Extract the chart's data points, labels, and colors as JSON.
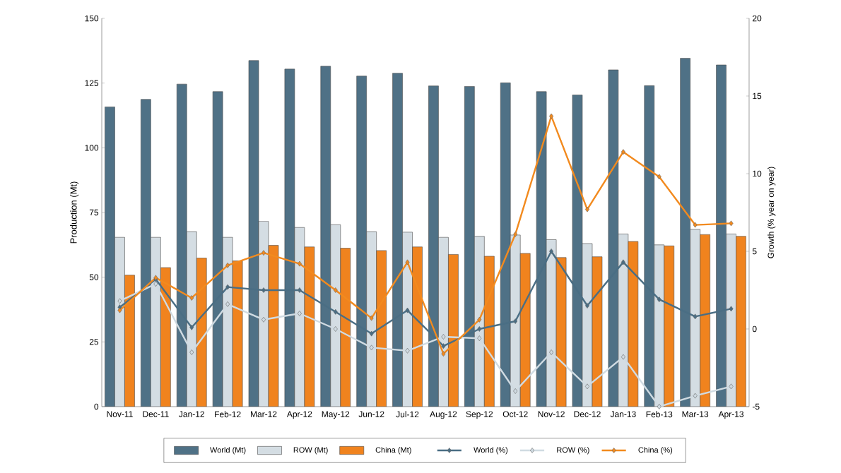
{
  "chart_data": {
    "type": "bar",
    "ylabel": "Production (Mt)",
    "y2label": "Growth (% year on year)",
    "categories": [
      "Nov-11",
      "Dec-11",
      "Jan-12",
      "Feb-12",
      "Mar-12",
      "Apr-12",
      "May-12",
      "Jun-12",
      "Jul-12",
      "Aug-12",
      "Sep-12",
      "Oct-12",
      "Nov-12",
      "Dec-12",
      "Jan-13",
      "Feb-13",
      "Mar-13",
      "Apr-13"
    ],
    "ylim": [
      0,
      150
    ],
    "yticks": [
      0,
      25,
      50,
      75,
      100,
      125,
      150
    ],
    "y2lim": [
      -5,
      20
    ],
    "y2ticks": [
      -5,
      0,
      5,
      10,
      15,
      20
    ],
    "legend": "bottom",
    "grid": false,
    "series": [
      {
        "name": "World (Mt)",
        "color": "#4f7186",
        "values": [
          115.8,
          118.7,
          124.6,
          121.7,
          133.7,
          130.4,
          131.5,
          127.7,
          128.8,
          123.9,
          123.7,
          125.1,
          121.7,
          120.4,
          130.1,
          124.0,
          134.6,
          132.0
        ]
      },
      {
        "name": "ROW (Mt)",
        "color": "#d4dde3",
        "values": [
          65.4,
          65.4,
          67.6,
          65.4,
          71.6,
          69.2,
          70.3,
          67.6,
          67.4,
          65.4,
          65.8,
          66.3,
          64.5,
          63.0,
          66.7,
          62.5,
          68.5,
          66.7
        ]
      },
      {
        "name": "China (Mt)",
        "color": "#f0831e",
        "values": [
          50.8,
          53.7,
          57.4,
          56.3,
          62.3,
          61.7,
          61.2,
          60.3,
          61.7,
          58.8,
          58.1,
          59.2,
          57.6,
          57.9,
          63.8,
          62.1,
          66.5,
          65.8
        ]
      },
      {
        "name": "World (%)",
        "type": "line",
        "axis": "y2",
        "marker": "diamond",
        "color": "#4a6e84",
        "values": [
          1.4,
          3.2,
          0.1,
          2.7,
          2.5,
          2.5,
          1.1,
          -0.3,
          1.2,
          -1.1,
          0.0,
          0.5,
          5.0,
          1.5,
          4.3,
          1.9,
          0.8,
          1.3
        ]
      },
      {
        "name": "ROW (%)",
        "type": "line",
        "axis": "y2",
        "marker": "diamond",
        "color": "#d0dbe2",
        "values": [
          1.8,
          2.9,
          -1.5,
          1.6,
          0.6,
          1.0,
          0.0,
          -1.2,
          -1.4,
          -0.5,
          -0.6,
          -4.0,
          -1.5,
          -3.7,
          -1.8,
          -5.0,
          -4.3,
          -3.7
        ]
      },
      {
        "name": "China (%)",
        "type": "line",
        "axis": "y2",
        "marker": "diamond",
        "color": "#f28a1e",
        "values": [
          1.2,
          3.3,
          2.0,
          4.1,
          4.9,
          4.2,
          2.5,
          0.7,
          4.3,
          -1.6,
          0.6,
          6.1,
          13.7,
          7.7,
          11.4,
          9.8,
          6.7,
          6.8
        ]
      }
    ]
  }
}
